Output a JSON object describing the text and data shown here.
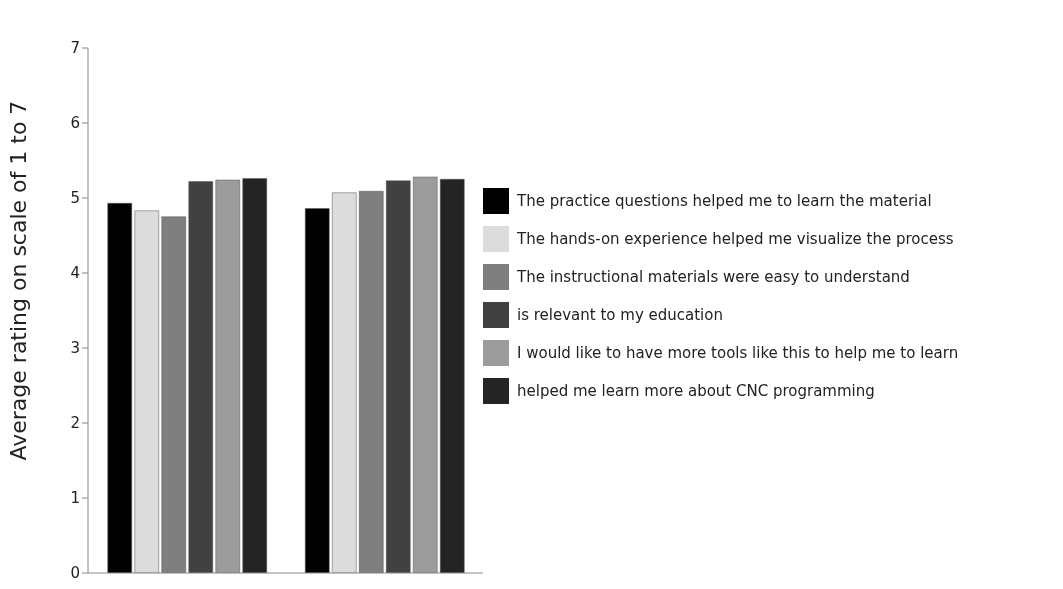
{
  "chart_data": {
    "type": "bar",
    "ylabel": "Average rating on scale of 1 to 7",
    "categories": [
      null,
      null
    ],
    "series": [
      {
        "name": "The practice questions helped me to learn the material",
        "color": "#000000",
        "values": [
          4.93,
          4.86
        ]
      },
      {
        "name": "The hands-on experience helped me visualize the process",
        "color": "#dcdcdc",
        "values": [
          4.83,
          5.07
        ]
      },
      {
        "name": "The instructional materials were easy to understand",
        "color": "#7f7f7f",
        "values": [
          4.75,
          5.09
        ]
      },
      {
        "name": "is relevant to my education",
        "color": "#414141",
        "values": [
          5.22,
          5.23
        ]
      },
      {
        "name": "I would like to have more tools like this to help me to learn",
        "color": "#9c9c9c",
        "values": [
          5.24,
          5.28
        ]
      },
      {
        "name": "helped me learn more about CNC programming",
        "color": "#242424",
        "values": [
          5.26,
          5.25
        ]
      }
    ],
    "ylim": [
      0,
      7
    ],
    "yticks": [
      0,
      1,
      2,
      3,
      4,
      5,
      6,
      7
    ],
    "grid": false,
    "legend": "right"
  }
}
